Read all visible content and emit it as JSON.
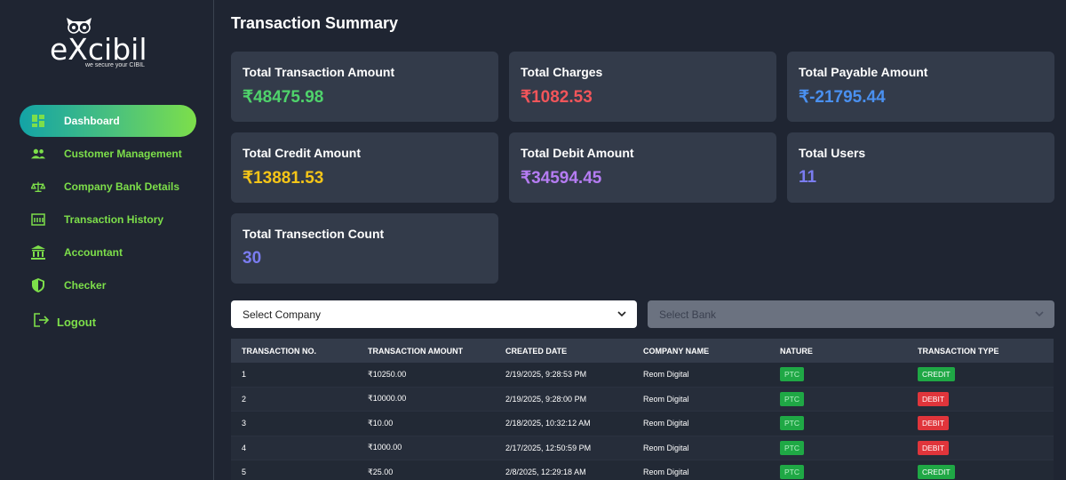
{
  "brand": {
    "name": "eXcibil",
    "tagline": "we secure your CIBIL"
  },
  "sidebar": {
    "items": [
      {
        "label": "Dashboard",
        "icon": "dashboard-icon",
        "active": true
      },
      {
        "label": "Customer Management",
        "icon": "people-icon"
      },
      {
        "label": "Company Bank Details",
        "icon": "balance-scale-icon"
      },
      {
        "label": "Transaction History",
        "icon": "history-icon"
      },
      {
        "label": "Accountant",
        "icon": "bank-icon"
      },
      {
        "label": "Checker",
        "icon": "shield-icon"
      }
    ],
    "logout_label": "Logout"
  },
  "page": {
    "title": "Transaction Summary"
  },
  "cards": [
    {
      "label": "Total Transaction Amount",
      "value": "₹48475.98",
      "color": "#4fd36b"
    },
    {
      "label": "Total Charges",
      "value": "₹1082.53",
      "color": "#f2555a"
    },
    {
      "label": "Total Payable Amount",
      "value": "₹-21795.44",
      "color": "#4a90f0"
    },
    {
      "label": "Total Credit Amount",
      "value": "₹13881.53",
      "color": "#f5c518"
    },
    {
      "label": "Total Debit Amount",
      "value": "₹34594.45",
      "color": "#b57cf2"
    },
    {
      "label": "Total Users",
      "value": "11",
      "color": "#7a7cf0"
    },
    {
      "label": "Total Transection Count",
      "value": "30",
      "color": "#7a7cf0"
    }
  ],
  "filters": {
    "company_placeholder": "Select Company",
    "bank_placeholder": "Select Bank"
  },
  "table": {
    "headers": [
      "TRANSACTION NO.",
      "TRANSACTION AMOUNT",
      "CREATED DATE",
      "COMPANY NAME",
      "NATURE",
      "TRANSACTION TYPE"
    ],
    "rows": [
      {
        "no": "1",
        "amount": "₹10250.00",
        "date": "2/19/2025, 9:28:53 PM",
        "company": "Reom Digital",
        "nature": "PTC",
        "type": "CREDIT"
      },
      {
        "no": "2",
        "amount": "₹10000.00",
        "date": "2/19/2025, 9:28:00 PM",
        "company": "Reom Digital",
        "nature": "PTC",
        "type": "DEBIT"
      },
      {
        "no": "3",
        "amount": "₹10.00",
        "date": "2/18/2025, 10:32:12 AM",
        "company": "Reom Digital",
        "nature": "PTC",
        "type": "DEBIT"
      },
      {
        "no": "4",
        "amount": "₹1000.00",
        "date": "2/17/2025, 12:50:59 PM",
        "company": "Reom Digital",
        "nature": "PTC",
        "type": "DEBIT"
      },
      {
        "no": "5",
        "amount": "₹25.00",
        "date": "2/8/2025, 12:29:18 AM",
        "company": "Reom Digital",
        "nature": "PTC",
        "type": "CREDIT"
      }
    ]
  }
}
